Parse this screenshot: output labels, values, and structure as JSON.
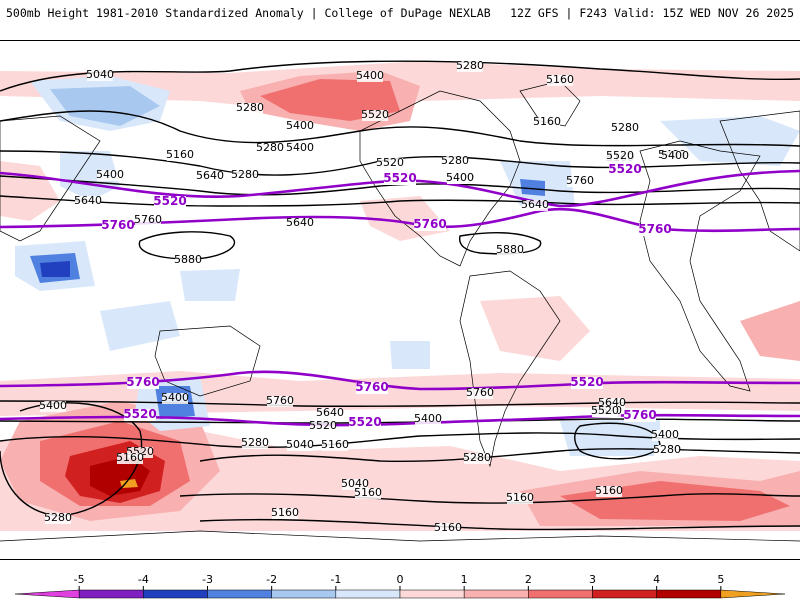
{
  "header": {
    "left": "500mb Height 1981-2010 Standardized Anomaly | College of DuPage NEXLAB",
    "right": "12Z GFS | F243 Valid: 15Z WED NOV 26 2025"
  },
  "colors": {
    "neg5": "#e040e0",
    "neg4": "#8020c0",
    "neg3": "#2040c0",
    "neg2": "#5080e0",
    "neg1": "#a8c8f0",
    "neg05": "#d8e8fa",
    "pos05": "#fcd8d8",
    "pos1": "#f8b0b0",
    "pos2": "#f07070",
    "pos3": "#d02020",
    "pos4": "#b00000",
    "pos5": "#f0a020",
    "contour": "#000000",
    "highlight": "#9000c8"
  },
  "colorbar": {
    "ticks": [
      "-5",
      "-4",
      "-3",
      "-2",
      "-1",
      "0",
      "1",
      "2",
      "3",
      "4",
      "5"
    ]
  },
  "labels": {
    "black": [
      "5040",
      "5400",
      "5280",
      "5160",
      "5280",
      "5400",
      "5520",
      "5160",
      "5280",
      "5400",
      "5520",
      "5400",
      "5640",
      "5280",
      "5400",
      "5160",
      "5280",
      "5160",
      "5520",
      "5400",
      "5280",
      "5640",
      "5760",
      "5400",
      "5640",
      "5880",
      "5880",
      "5760",
      "5400",
      "5640",
      "5760",
      "5280",
      "5040",
      "5160",
      "5040",
      "5160",
      "5760",
      "5640",
      "5520",
      "5400",
      "5280",
      "5160",
      "5160",
      "5160",
      "5280",
      "5640",
      "5520",
      "5400",
      "5280",
      "5160",
      "5520",
      "5400",
      "5280",
      "5760",
      "5160",
      "5400",
      "5520"
    ],
    "purple": [
      "5520",
      "5760",
      "5520",
      "5760",
      "5520",
      "5760",
      "5760",
      "5760",
      "5520",
      "5520",
      "5760",
      "5520"
    ]
  }
}
